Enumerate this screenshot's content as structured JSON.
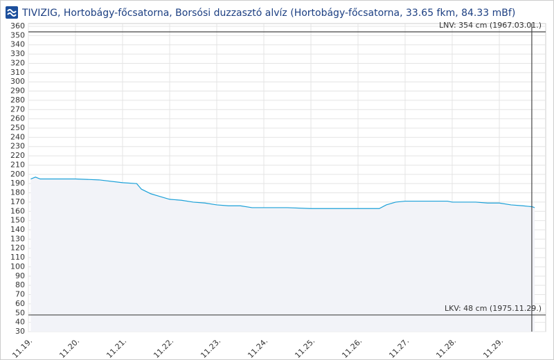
{
  "chart_data": {
    "type": "line",
    "title": "TIVIZIG, Hortobágy-főcsatorna, Borsósi duzzasztó alvíz (Hortobágy-főcsatorna, 33.65 fkm, 84.33 mBf)",
    "x": [
      0.05,
      0.15,
      0.25,
      0.5,
      1.0,
      1.5,
      2.0,
      2.3,
      2.4,
      2.6,
      2.8,
      3.0,
      3.25,
      3.5,
      3.75,
      4.0,
      4.25,
      4.5,
      4.75,
      5.0,
      5.5,
      6.0,
      6.5,
      7.0,
      7.3,
      7.45,
      7.6,
      7.8,
      8.0,
      8.5,
      8.9,
      9.0,
      9.5,
      9.75,
      10.0,
      10.25,
      10.5,
      10.7,
      10.75
    ],
    "values": [
      195,
      197,
      195,
      195,
      195,
      194,
      191,
      190,
      184,
      179,
      176,
      173,
      172,
      170,
      169,
      167,
      166,
      166,
      164,
      164,
      164,
      163,
      163,
      163,
      163,
      163,
      167,
      170,
      171,
      171,
      171,
      170,
      170,
      169,
      169,
      167,
      166,
      165,
      164
    ],
    "color": "#1aa0d8",
    "area_color": "#f2f3f8",
    "xlim": [
      0,
      10.985
    ],
    "xticks": [
      {
        "value": 0,
        "label": "11.19."
      },
      {
        "value": 1,
        "label": "11.20."
      },
      {
        "value": 2,
        "label": "11.21."
      },
      {
        "value": 3,
        "label": "11.22."
      },
      {
        "value": 4,
        "label": "11.23."
      },
      {
        "value": 5,
        "label": "11.24."
      },
      {
        "value": 6,
        "label": "11.25."
      },
      {
        "value": 7,
        "label": "11.26."
      },
      {
        "value": 8,
        "label": "11.27."
      },
      {
        "value": 9,
        "label": "11.28."
      },
      {
        "value": 10,
        "label": "11.29."
      }
    ],
    "ylim": [
      30,
      363
    ],
    "yticks": [
      30,
      40,
      50,
      60,
      70,
      80,
      90,
      100,
      110,
      120,
      130,
      140,
      150,
      160,
      170,
      180,
      190,
      200,
      210,
      220,
      230,
      240,
      250,
      260,
      270,
      280,
      290,
      300,
      310,
      320,
      330,
      340,
      350,
      360
    ],
    "grid": true,
    "vline_x": 10.69,
    "reference_lines": [
      {
        "value": 354,
        "label": "LNV: 354 cm (1967.03.01.)"
      },
      {
        "value": 48,
        "label": "LKV: 48 cm (1975.11.29.)"
      }
    ]
  }
}
